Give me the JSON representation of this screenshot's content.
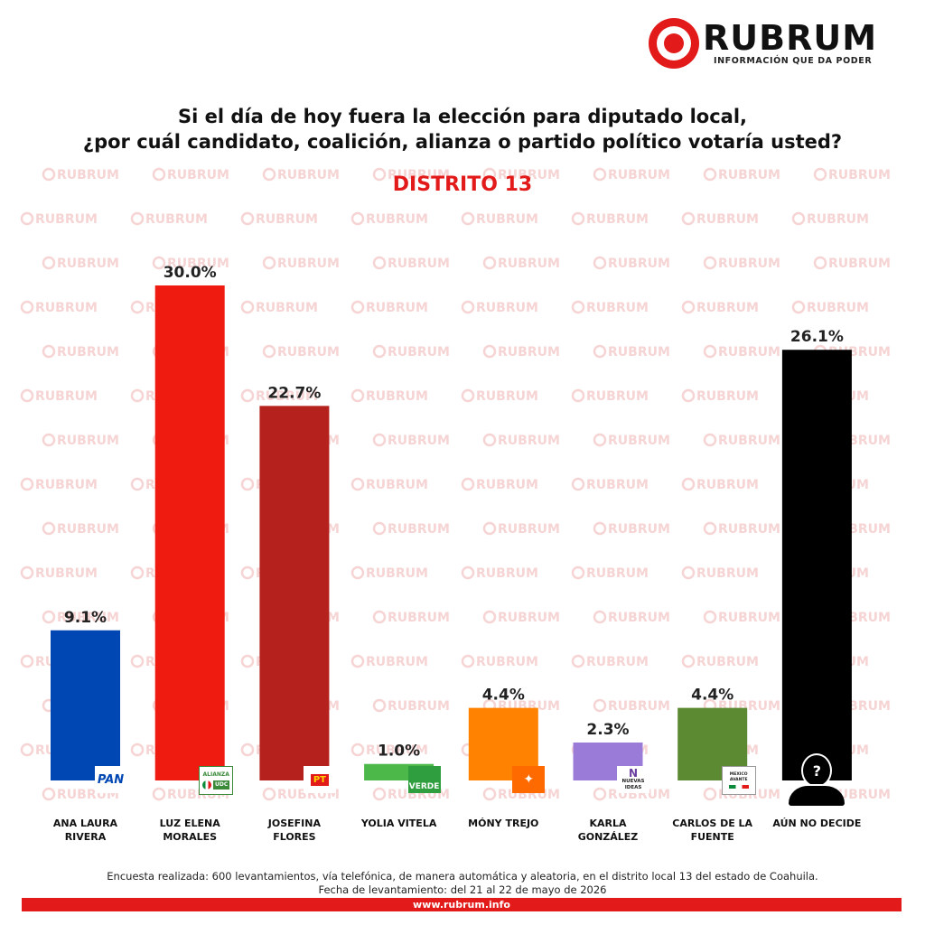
{
  "brand": {
    "name": "RUBRUM",
    "tagline": "INFORMACIÓN QUE DA PODER",
    "watermark": "RUBRUM",
    "accent_color": "#e21a1a"
  },
  "question": {
    "line1": "Si el día de hoy fuera la elección para diputado local,",
    "line2": "¿por cuál candidato, coalición, alianza o partido político votaría usted?"
  },
  "district": "DISTRITO 13",
  "chart_data": {
    "type": "bar",
    "title": "Si el día de hoy fuera la elección para diputado local, ¿por cuál candidato, coalición, alianza o partido político votaría usted?",
    "subtitle": "DISTRITO 13",
    "categories": [
      "ANA LAURA RIVERA",
      "LUZ ELENA MORALES",
      "JOSEFINA FLORES",
      "YOLIA VITELA",
      "MÓNY TREJO",
      "KARLA GONZÁLEZ",
      "CARLOS DE LA FUENTE",
      "AÚN NO DECIDE"
    ],
    "values": [
      9.1,
      30.0,
      22.7,
      1.0,
      4.4,
      2.3,
      4.4,
      26.1
    ],
    "value_labels": [
      "9.1%",
      "30.0%",
      "22.7%",
      "1.0%",
      "4.4%",
      "2.3%",
      "4.4%",
      "26.1%"
    ],
    "label_lines": [
      [
        "ANA LAURA",
        "RIVERA"
      ],
      [
        "LUZ ELENA",
        "MORALES"
      ],
      [
        "JOSEFINA",
        "FLORES"
      ],
      [
        "YOLIA VITELA"
      ],
      [
        "MÓNY TREJO"
      ],
      [
        "KARLA",
        "GONZÁLEZ"
      ],
      [
        "CARLOS DE LA",
        "FUENTE"
      ],
      [
        "AÚN NO DECIDE"
      ]
    ],
    "colors": [
      "#0047b3",
      "#ef1b10",
      "#b5221d",
      "#4cb84a",
      "#ff8200",
      "#9b7bd8",
      "#5b8a32",
      "#000000"
    ],
    "party_icons": [
      "pan-logo-icon",
      "alianza-pri-udc-logo-icon",
      "pt-logo-icon",
      "verde-logo-icon",
      "movimiento-ciudadano-logo-icon",
      "nuevas-ideas-logo-icon",
      "mexico-avante-logo-icon",
      "undecided-person-icon"
    ],
    "party_icon_text": [
      "PAN",
      "ALIANZA UDC",
      "PT",
      "VERDE",
      "",
      "NUEVAS IDEAS",
      "MEXICO AVANTE",
      "?"
    ],
    "ylim": [
      0,
      30
    ],
    "grid": false,
    "legend": "none",
    "xlabel": "",
    "ylabel": ""
  },
  "footnote": {
    "line1": "Encuesta realizada: 600 levantamientos, vía telefónica, de manera automática y aleatoria, en el distrito local 13 del estado de Coahuila.",
    "line2": "Fecha de levantamiento: del 21 al 22 de mayo de 2026"
  },
  "footer": {
    "url": "www.rubrum.info"
  }
}
